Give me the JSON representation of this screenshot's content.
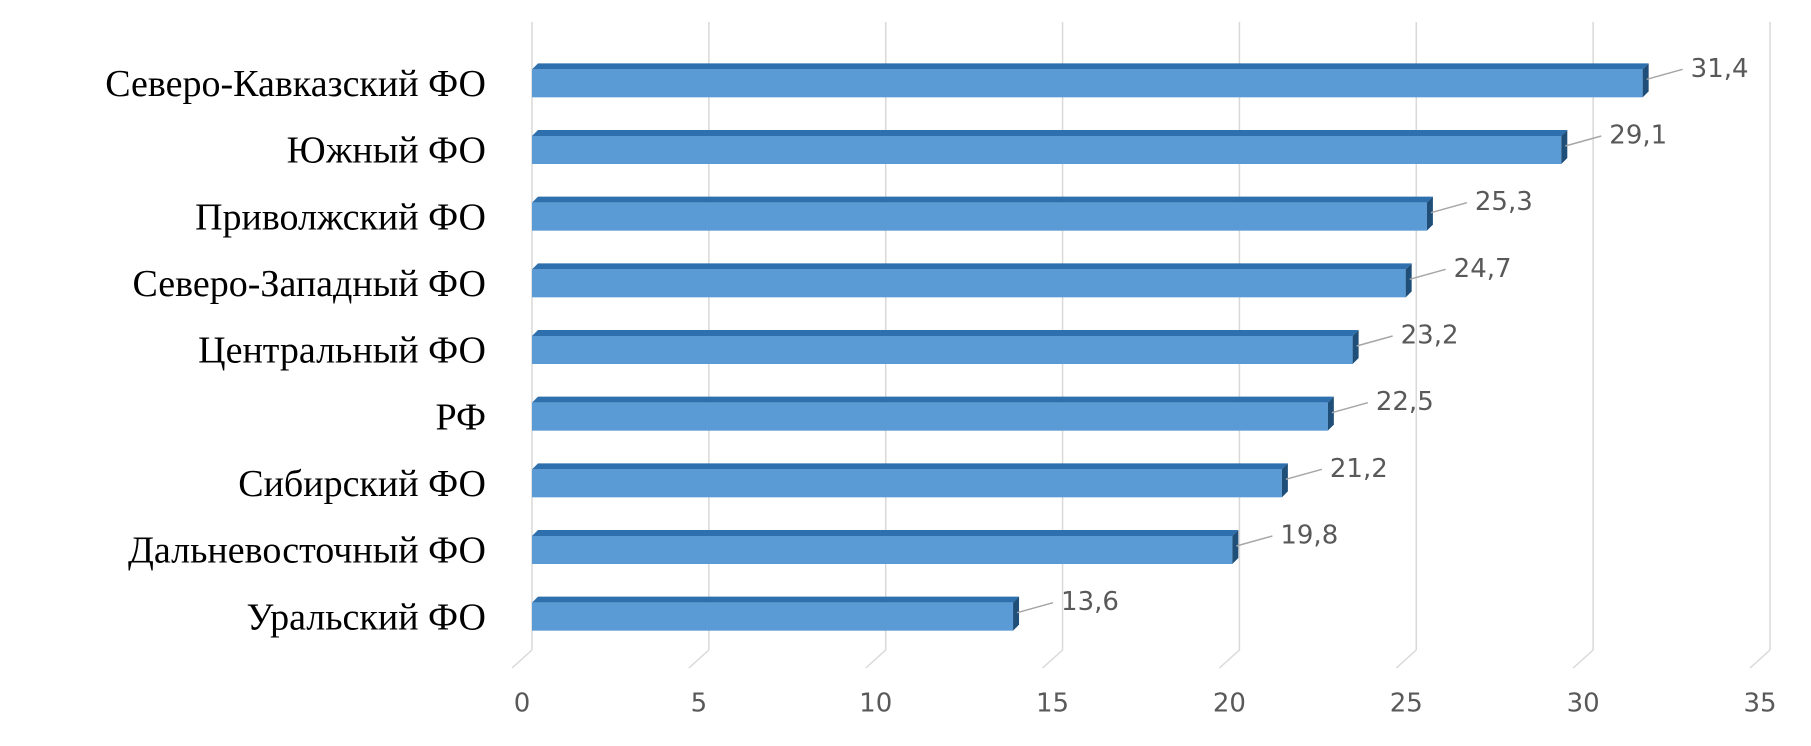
{
  "chart_data": {
    "type": "bar",
    "orientation": "horizontal",
    "categories": [
      "Северо-Кавказский ФО",
      "Южный ФО",
      "Приволжский ФО",
      "Северо-Западный ФО",
      "Центральный ФО",
      "РФ",
      "Сибирский ФО",
      "Дальневосточный ФО",
      "Уральский ФО"
    ],
    "values": [
      31.4,
      29.1,
      25.3,
      24.7,
      23.2,
      22.5,
      21.2,
      19.8,
      13.6
    ],
    "value_labels": [
      "31,4",
      "29,1",
      "25,3",
      "24,7",
      "23,2",
      "22,5",
      "21,2",
      "19,8",
      "13,6"
    ],
    "color": "#5b9bd5",
    "xlim": [
      0,
      35
    ],
    "xticks": [
      0,
      5,
      10,
      15,
      20,
      25,
      30,
      35
    ],
    "grid": true
  }
}
